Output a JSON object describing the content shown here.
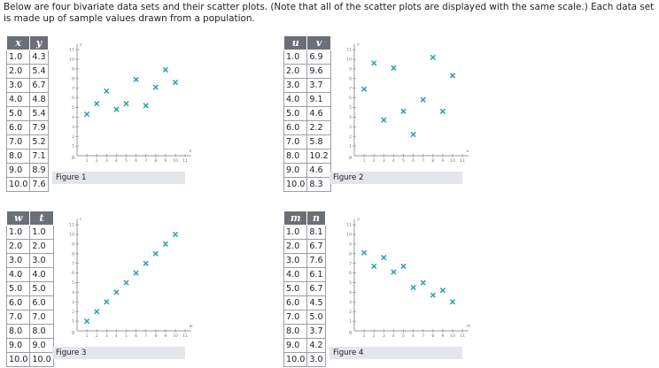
{
  "intro": "Below are four bivariate data sets and their scatter plots. (Note that all of the scatter plots are displayed with the same scale.) Each data set is made up of sample values drawn from a population.",
  "colors": {
    "marker": "#2a9fb0",
    "axis": "#9a9a9a",
    "header_bg": "#6b6f78",
    "caption_bg": "#e3e6ea"
  },
  "icons": {
    "marker": "x-mark"
  },
  "panels": [
    {
      "figure": "Figure 1",
      "xcol": "x",
      "ycol": "y",
      "rows": [
        [
          "1.0",
          "4.3"
        ],
        [
          "2.0",
          "5.4"
        ],
        [
          "3.0",
          "6.7"
        ],
        [
          "4.0",
          "4.8"
        ],
        [
          "5.0",
          "5.4"
        ],
        [
          "6.0",
          "7.9"
        ],
        [
          "7.0",
          "5.2"
        ],
        [
          "8.0",
          "7.1"
        ],
        [
          "9.0",
          "8.9"
        ],
        [
          "10.0",
          "7.6"
        ]
      ]
    },
    {
      "figure": "Figure 2",
      "xcol": "u",
      "ycol": "v",
      "rows": [
        [
          "1.0",
          "6.9"
        ],
        [
          "2.0",
          "9.6"
        ],
        [
          "3.0",
          "3.7"
        ],
        [
          "4.0",
          "9.1"
        ],
        [
          "5.0",
          "4.6"
        ],
        [
          "6.0",
          "2.2"
        ],
        [
          "7.0",
          "5.8"
        ],
        [
          "8.0",
          "10.2"
        ],
        [
          "9.0",
          "4.6"
        ],
        [
          "10.0",
          "8.3"
        ]
      ]
    },
    {
      "figure": "Figure 3",
      "xcol": "w",
      "ycol": "t",
      "rows": [
        [
          "1.0",
          "1.0"
        ],
        [
          "2.0",
          "2.0"
        ],
        [
          "3.0",
          "3.0"
        ],
        [
          "4.0",
          "4.0"
        ],
        [
          "5.0",
          "5.0"
        ],
        [
          "6.0",
          "6.0"
        ],
        [
          "7.0",
          "7.0"
        ],
        [
          "8.0",
          "8.0"
        ],
        [
          "9.0",
          "9.0"
        ],
        [
          "10.0",
          "10.0"
        ]
      ]
    },
    {
      "figure": "Figure 4",
      "xcol": "m",
      "ycol": "n",
      "rows": [
        [
          "1.0",
          "8.1"
        ],
        [
          "2.0",
          "6.7"
        ],
        [
          "3.0",
          "7.6"
        ],
        [
          "4.0",
          "6.1"
        ],
        [
          "5.0",
          "6.7"
        ],
        [
          "6.0",
          "4.5"
        ],
        [
          "7.0",
          "5.0"
        ],
        [
          "8.0",
          "3.7"
        ],
        [
          "9.0",
          "4.2"
        ],
        [
          "10.0",
          "3.0"
        ]
      ]
    }
  ],
  "chart_data": [
    {
      "type": "scatter",
      "title": "Figure 1",
      "xlabel": "x",
      "ylabel": "y",
      "xlim": [
        0,
        11
      ],
      "ylim": [
        0,
        11
      ],
      "xticks": [
        "1",
        "2",
        "3",
        "4",
        "5",
        "6",
        "7",
        "8",
        "9",
        "10",
        "11"
      ],
      "yticks": [
        "1",
        "2",
        "3",
        "4",
        "5",
        "6",
        "7",
        "8",
        "9",
        "10",
        "11"
      ],
      "x": [
        1.0,
        2.0,
        3.0,
        4.0,
        5.0,
        6.0,
        7.0,
        8.0,
        9.0,
        10.0
      ],
      "y": [
        4.3,
        5.4,
        6.7,
        4.8,
        5.4,
        7.9,
        5.2,
        7.1,
        8.9,
        7.6
      ]
    },
    {
      "type": "scatter",
      "title": "Figure 2",
      "xlabel": "u",
      "ylabel": "v",
      "xlim": [
        0,
        11
      ],
      "ylim": [
        0,
        11
      ],
      "xticks": [
        "1",
        "2",
        "3",
        "4",
        "5",
        "6",
        "7",
        "8",
        "9",
        "10",
        "11"
      ],
      "yticks": [
        "1",
        "2",
        "3",
        "4",
        "5",
        "6",
        "7",
        "8",
        "9",
        "10",
        "11"
      ],
      "x": [
        1.0,
        2.0,
        3.0,
        4.0,
        5.0,
        6.0,
        7.0,
        8.0,
        9.0,
        10.0
      ],
      "y": [
        6.9,
        9.6,
        3.7,
        9.1,
        4.6,
        2.2,
        5.8,
        10.2,
        4.6,
        8.3
      ]
    },
    {
      "type": "scatter",
      "title": "Figure 3",
      "xlabel": "w",
      "ylabel": "t",
      "xlim": [
        0,
        11
      ],
      "ylim": [
        0,
        11
      ],
      "xticks": [
        "1",
        "2",
        "3",
        "4",
        "5",
        "6",
        "7",
        "8",
        "9",
        "10",
        "11"
      ],
      "yticks": [
        "1",
        "2",
        "3",
        "4",
        "5",
        "6",
        "7",
        "8",
        "9",
        "10",
        "11"
      ],
      "x": [
        1.0,
        2.0,
        3.0,
        4.0,
        5.0,
        6.0,
        7.0,
        8.0,
        9.0,
        10.0
      ],
      "y": [
        1.0,
        2.0,
        3.0,
        4.0,
        5.0,
        6.0,
        7.0,
        8.0,
        9.0,
        10.0
      ]
    },
    {
      "type": "scatter",
      "title": "Figure 4",
      "xlabel": "m",
      "ylabel": "n",
      "xlim": [
        0,
        11
      ],
      "ylim": [
        0,
        11
      ],
      "xticks": [
        "1",
        "2",
        "3",
        "4",
        "5",
        "6",
        "7",
        "8",
        "9",
        "10",
        "11"
      ],
      "yticks": [
        "1",
        "2",
        "3",
        "4",
        "5",
        "6",
        "7",
        "8",
        "9",
        "10",
        "11"
      ],
      "x": [
        1.0,
        2.0,
        3.0,
        4.0,
        5.0,
        6.0,
        7.0,
        8.0,
        9.0,
        10.0
      ],
      "y": [
        8.1,
        6.7,
        7.6,
        6.1,
        6.7,
        4.5,
        5.0,
        3.7,
        4.2,
        3.0
      ]
    }
  ]
}
